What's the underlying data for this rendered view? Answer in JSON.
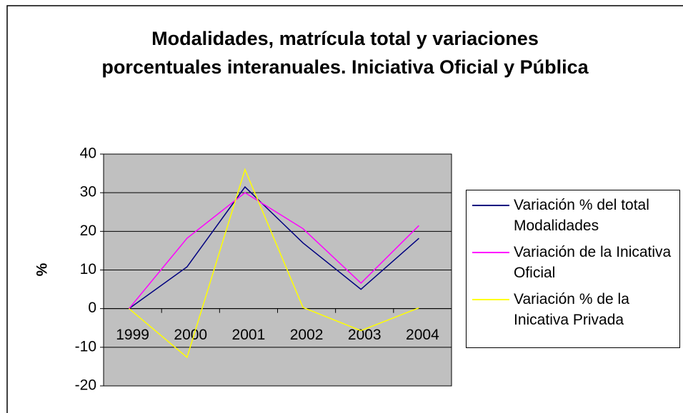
{
  "chart_data": {
    "type": "line",
    "title": "Modalidades,  matrícula total y variaciones porcentuales interanuales. Iniciativa Oficial y Pública",
    "y_label": "%",
    "categories": [
      "1999",
      "2000",
      "2001",
      "2002",
      "2003",
      "2004"
    ],
    "series": [
      {
        "name": "Variación % del total Modalidades",
        "color": "#000080",
        "values": [
          0,
          10.8,
          31.5,
          17,
          5,
          18.2
        ]
      },
      {
        "name": "Variación de la Inicativa Oficial",
        "color": "#ff00ff",
        "values": [
          0,
          18.2,
          30,
          20.7,
          6.6,
          21.5
        ]
      },
      {
        "name": "Variación % de la Inicativa Privada",
        "color": "#ffff00",
        "values": [
          0,
          -12.6,
          36,
          0.3,
          -5.7,
          0.2
        ]
      }
    ],
    "ylim": [
      -20,
      40
    ],
    "yticks": [
      -20,
      -10,
      0,
      10,
      20,
      30,
      40
    ],
    "grid": true,
    "legend": "right",
    "plot_background": "#c0c0c0"
  }
}
